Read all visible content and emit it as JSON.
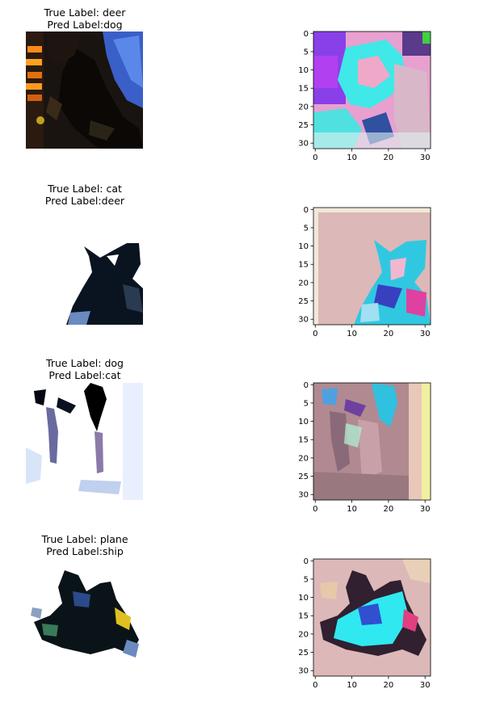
{
  "chart_data": [
    {
      "type": "image-grid",
      "panels": [
        {
          "true_label": "True Label: deer",
          "pred_label": "Pred Label:dog",
          "image_name": "deer-misclassified-image",
          "saliency_name": "deer-saliency-map"
        },
        {
          "true_label": "True Label: cat",
          "pred_label": "Pred Label:deer",
          "image_name": "cat-misclassified-image",
          "saliency_name": "cat-saliency-map"
        },
        {
          "true_label": "True Label: dog",
          "pred_label": "Pred Label:cat",
          "image_name": "dog-misclassified-image",
          "saliency_name": "dog-saliency-map"
        },
        {
          "true_label": "True Label: plane",
          "pred_label": "Pred Label:ship",
          "image_name": "plane-misclassified-image",
          "saliency_name": "plane-saliency-map"
        }
      ],
      "saliency_axes": {
        "xlim": [
          -0.5,
          31.5
        ],
        "ylim": [
          31.5,
          -0.5
        ],
        "xticks": [
          0,
          10,
          20,
          30
        ],
        "xtick_labels": [
          "0",
          "10",
          "20",
          "30"
        ],
        "yticks": [
          0,
          5,
          10,
          15,
          20,
          25,
          30
        ],
        "ytick_labels": [
          "0",
          "5",
          "10",
          "15",
          "20",
          "25",
          "30"
        ]
      }
    }
  ]
}
